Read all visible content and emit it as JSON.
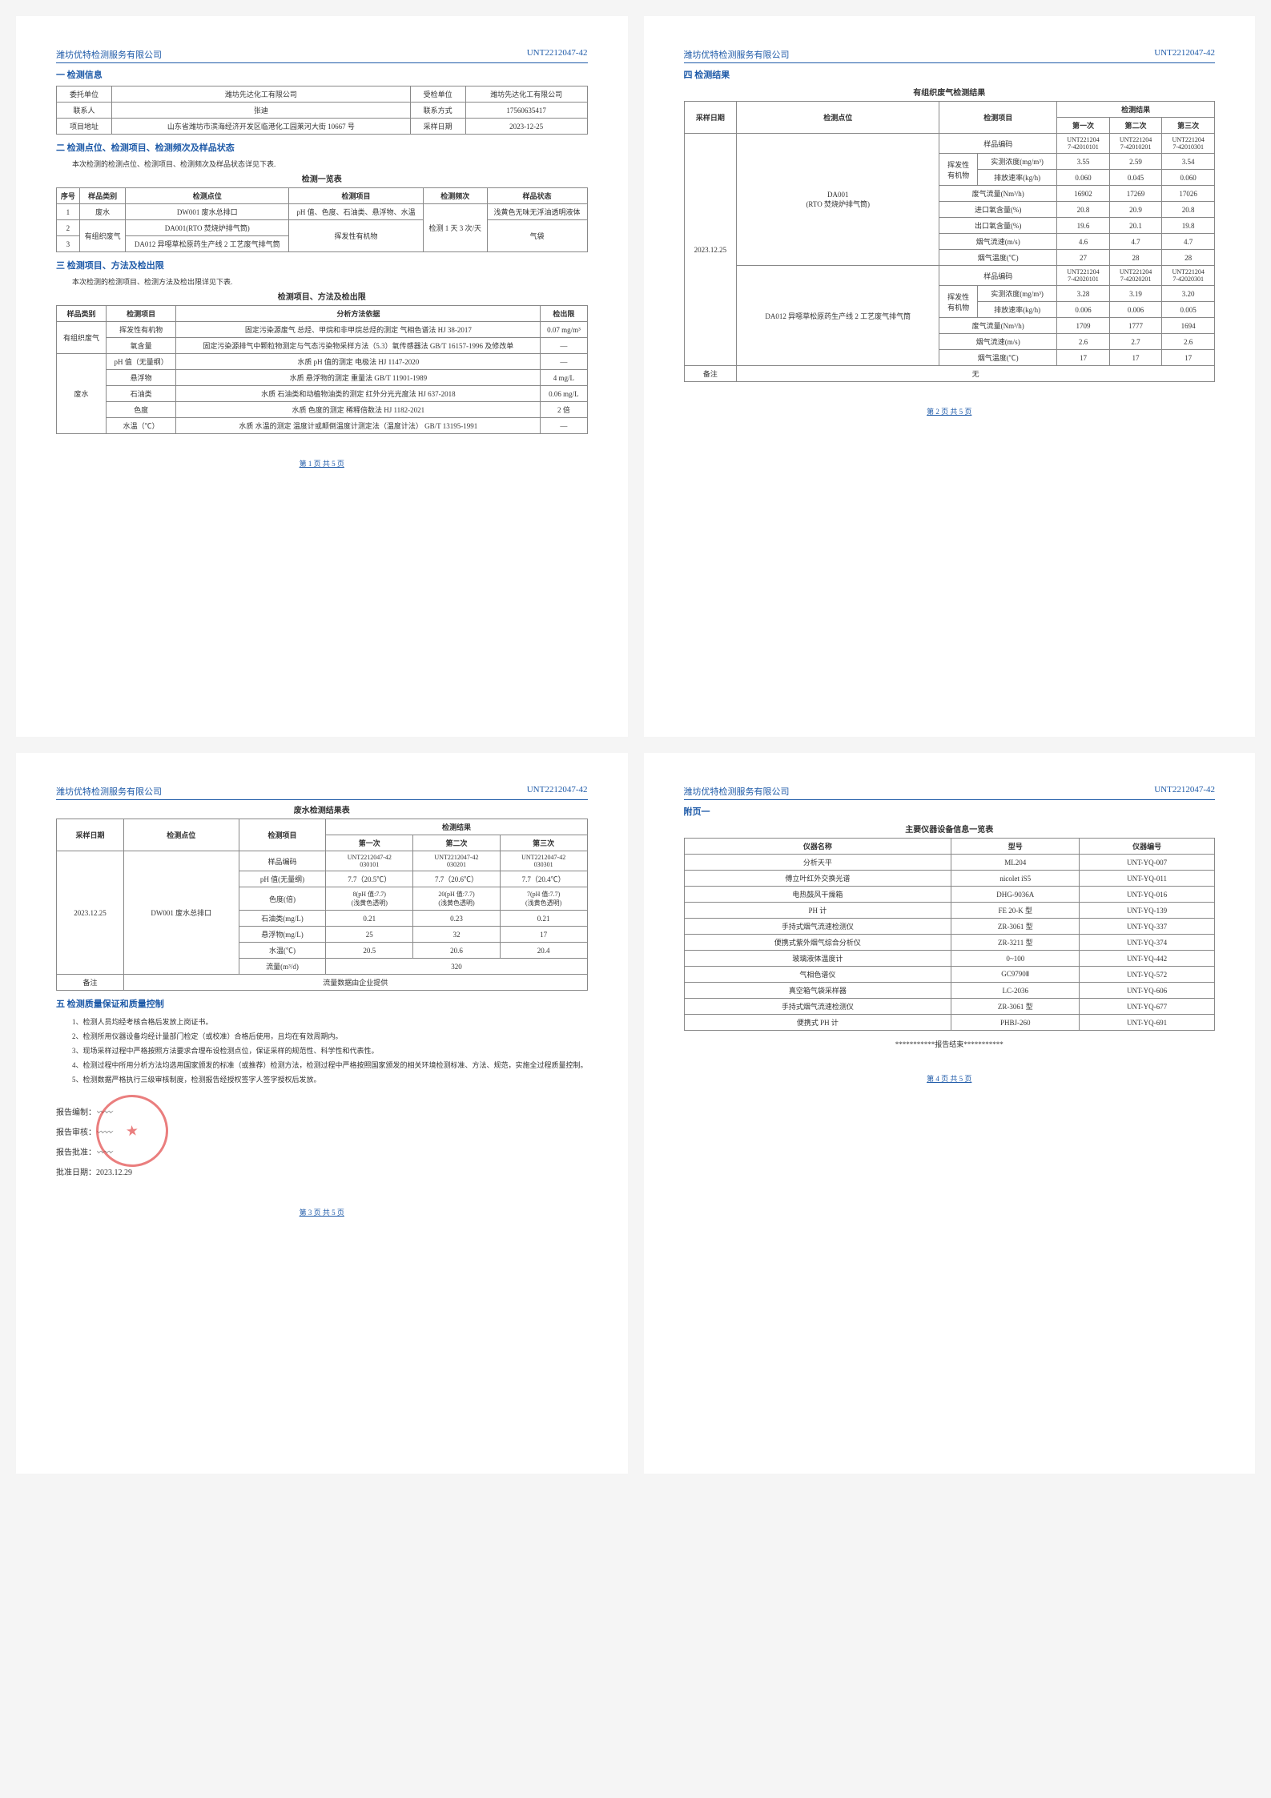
{
  "doc_number": "UNT2212047-42",
  "company": "潍坊优特检测服务有限公司",
  "page1": {
    "s1_title": "一 检测信息",
    "info_table": {
      "r1c1": "委托单位",
      "r1c2": "潍坊先达化工有限公司",
      "r1c3": "受检单位",
      "r1c4": "潍坊先达化工有限公司",
      "r2c1": "联系人",
      "r2c2": "张迪",
      "r2c3": "联系方式",
      "r2c4": "17560635417",
      "r3c1": "项目地址",
      "r3c2": "山东省潍坊市滨海经济开发区临港化工园莱河大街 10667 号",
      "r3c3": "采样日期",
      "r3c4": "2023-12-25"
    },
    "s2_title": "二 检测点位、检测项目、检测频次及样品状态",
    "s2_sub": "本次检测的检测点位、检测项目、检测频次及样品状态详见下表.",
    "t2_title": "检测一览表",
    "t2_headers": [
      "序号",
      "样品类别",
      "检测点位",
      "检测项目",
      "检测频次",
      "样品状态"
    ],
    "t2_rows": [
      [
        "1",
        "废水",
        "DW001 废水总排口",
        "pH 值、色度、石油类、悬浮物、水温",
        "检测 1 天\n3 次/天",
        "浅黄色无味无浮油透明液体"
      ],
      [
        "2",
        "有组织废气",
        "DA001(RTO 焚烧炉排气筒)",
        "挥发性有机物",
        "",
        "气袋"
      ],
      [
        "3",
        "有组织废气",
        "DA012 异噁草松原药生产线 2 工艺废气排气筒",
        "挥发性有机物",
        "",
        "气袋"
      ]
    ],
    "s3_title": "三 检测项目、方法及检出限",
    "s3_sub": "本次检测的检测项目、检测方法及检出限详见下表.",
    "t3_title": "检测项目、方法及检出限",
    "t3_headers": [
      "样品类别",
      "检测项目",
      "分析方法依据",
      "检出限"
    ],
    "t3_rows": [
      [
        "有组织废气",
        "挥发性有机物",
        "固定污染源废气 总烃、甲烷和非甲烷总烃的测定 气相色谱法 HJ 38-2017",
        "0.07 mg/m³"
      ],
      [
        "",
        "氧含量",
        "固定污染源排气中颗粒物测定与气态污染物采样方法（5.3）氧传感器法 GB/T 16157-1996 及修改单",
        "—"
      ],
      [
        "废水",
        "pH 值（无量纲）",
        "水质 pH 值的测定 电极法 HJ 1147-2020",
        "—"
      ],
      [
        "",
        "悬浮物",
        "水质 悬浮物的测定 重量法 GB/T 11901-1989",
        "4 mg/L"
      ],
      [
        "",
        "石油类",
        "水质 石油类和动植物油类的测定 红外分光光度法 HJ 637-2018",
        "0.06 mg/L"
      ],
      [
        "",
        "色度",
        "水质 色度的测定 稀释倍数法 HJ 1182-2021",
        "2 倍"
      ],
      [
        "",
        "水温（℃）",
        "水质 水温的测定 温度计或颠倒温度计测定法（温度计法） GB/T 13195-1991",
        "—"
      ]
    ],
    "footer": "第 1 页 共 5 页"
  },
  "page2": {
    "s_title": "四 检测结果",
    "t_title": "有组织废气检测结果",
    "h1": "采样日期",
    "h2": "检测点位",
    "h3": "检测项目",
    "h4": "检测结果",
    "sub_h": [
      "第一次",
      "第二次",
      "第三次"
    ],
    "date": "2023.12.25",
    "loc1": "DA001\n(RTO 焚烧炉排气筒)",
    "loc2": "DA012 异噁草松原药生产线 2 工艺废气排气筒",
    "vol_cat": "挥发性\n有机物",
    "rows1": [
      [
        "样品编码",
        "UNT221204\n7-42010101",
        "UNT221204\n7-42010201",
        "UNT221204\n7-42010301"
      ],
      [
        "实测浓度(mg/m³)",
        "3.55",
        "2.59",
        "3.54"
      ],
      [
        "排放速率(kg/h)",
        "0.060",
        "0.045",
        "0.060"
      ],
      [
        "废气流量(Nm³/h)",
        "16902",
        "17269",
        "17026"
      ],
      [
        "进口氧含量(%)",
        "20.8",
        "20.9",
        "20.8"
      ],
      [
        "出口氧含量(%)",
        "19.6",
        "20.1",
        "19.8"
      ],
      [
        "烟气流速(m/s)",
        "4.6",
        "4.7",
        "4.7"
      ],
      [
        "烟气温度(℃)",
        "27",
        "28",
        "28"
      ]
    ],
    "rows2": [
      [
        "样品编码",
        "UNT221204\n7-42020101",
        "UNT221204\n7-42020201",
        "UNT221204\n7-42020301"
      ],
      [
        "实测浓度(mg/m³)",
        "3.28",
        "3.19",
        "3.20"
      ],
      [
        "排放速率(kg/h)",
        "0.006",
        "0.006",
        "0.005"
      ],
      [
        "废气流量(Nm³/h)",
        "1709",
        "1777",
        "1694"
      ],
      [
        "烟气流速(m/s)",
        "2.6",
        "2.7",
        "2.6"
      ],
      [
        "烟气温度(℃)",
        "17",
        "17",
        "17"
      ]
    ],
    "note_label": "备注",
    "note_val": "无",
    "footer": "第 2 页 共 5 页"
  },
  "page3": {
    "t_title": "废水检测结果表",
    "h1": "采样日期",
    "h2": "检测点位",
    "h3": "检测项目",
    "h4": "检测结果",
    "sub_h": [
      "第一次",
      "第二次",
      "第三次"
    ],
    "date": "2023.12.25",
    "loc": "DW001 废水总排口",
    "rows": [
      [
        "样品编码",
        "UNT2212047-42\n030101",
        "UNT2212047-42\n030201",
        "UNT2212047-42\n030301"
      ],
      [
        "pH 值(无量纲)",
        "7.7（20.5℃）",
        "7.7（20.6℃）",
        "7.7（20.4℃）"
      ],
      [
        "色度(倍)",
        "8(pH 值:7.7)\n(浅黄色透明)",
        "20(pH 值:7.7)\n(浅黄色透明)",
        "7(pH 值:7.7)\n(浅黄色透明)"
      ],
      [
        "石油类(mg/L)",
        "0.21",
        "0.23",
        "0.21"
      ],
      [
        "悬浮物(mg/L)",
        "25",
        "32",
        "17"
      ],
      [
        "水温(℃)",
        "20.5",
        "20.6",
        "20.4"
      ],
      [
        "流量(m³/d)",
        "320",
        "",
        ""
      ]
    ],
    "note_label": "备注",
    "note_val": "流量数据由企业提供",
    "s5_title": "五 检测质量保证和质量控制",
    "qc": [
      "1、检测人员均经考核合格后发放上岗证书。",
      "2、检测所用仪器设备均经计量部门检定（或校准）合格后使用，且均在有效周期内。",
      "3、现场采样过程中严格按照方法要求合理布设检测点位，保证采样的规范性、科学性和代表性。",
      "4、检测过程中所用分析方法均选用国家颁发的标准（或推荐）检测方法，检测过程中严格按照国家颁发的相关环境检测标准、方法、规范，实施全过程质量控制。",
      "5、检测数据严格执行三级审核制度，检测报告经授权签字人签字授权后发放。"
    ],
    "sig": {
      "l1": "报告编制：",
      "l2": "报告审核：",
      "l3": "报告批准：",
      "l4": "批准日期：",
      "date": "2023.12.29"
    },
    "footer": "第 3 页 共 5 页"
  },
  "page4": {
    "appendix": "附页一",
    "t_title": "主要仪器设备信息一览表",
    "headers": [
      "仪器名称",
      "型号",
      "仪器编号"
    ],
    "rows": [
      [
        "分析天平",
        "ML204",
        "UNT-YQ-007"
      ],
      [
        "傅立叶红外交换光谱",
        "nicolet iS5",
        "UNT-YQ-011"
      ],
      [
        "电热鼓风干燥箱",
        "DHG-9036A",
        "UNT-YQ-016"
      ],
      [
        "PH 计",
        "FE 20-K 型",
        "UNT-YQ-139"
      ],
      [
        "手持式烟气流速检测仪",
        "ZR-3061 型",
        "UNT-YQ-337"
      ],
      [
        "便携式紫外烟气综合分析仪",
        "ZR-3211 型",
        "UNT-YQ-374"
      ],
      [
        "玻璃液体温度计",
        "0~100",
        "UNT-YQ-442"
      ],
      [
        "气相色谱仪",
        "GC9790Ⅱ",
        "UNT-YQ-572"
      ],
      [
        "真空箱气袋采样器",
        "LC-2036",
        "UNT-YQ-606"
      ],
      [
        "手持式烟气流速检测仪",
        "ZR-3061 型",
        "UNT-YQ-677"
      ],
      [
        "便携式 PH 计",
        "PHBJ-260",
        "UNT-YQ-691"
      ]
    ],
    "end": "***********报告结束***********",
    "footer": "第 4 页 共 5 页"
  }
}
